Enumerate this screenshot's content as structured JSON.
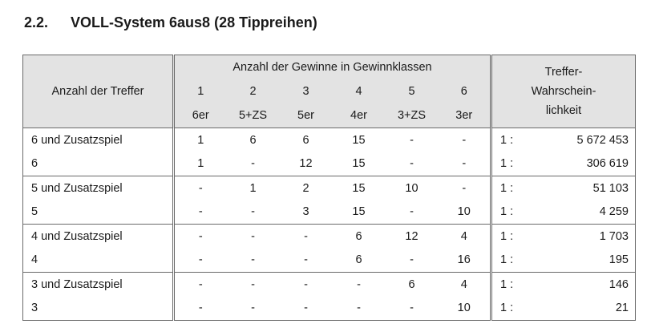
{
  "heading": {
    "number": "2.2.",
    "title": "VOLL-System 6aus8 (28 Tippreihen)"
  },
  "table": {
    "col_header_hits": "Anzahl der Treffer",
    "col_header_wins": "Anzahl der Gewinne in Gewinnklassen",
    "col_header_prob_lines": [
      "Treffer-",
      "Wahrschein-",
      "lichkeit"
    ],
    "classes": [
      "1",
      "2",
      "3",
      "4",
      "5",
      "6"
    ],
    "class_labels": [
      "6er",
      "5+ZS",
      "5er",
      "4er",
      "3+ZS",
      "3er"
    ],
    "rows": [
      {
        "label": "6 und Zusatzspiel",
        "wins": [
          "1",
          "6",
          "6",
          "15",
          "-",
          "-"
        ],
        "ratio": "1 :",
        "prob": "5 672 453"
      },
      {
        "label": "6",
        "wins": [
          "1",
          "-",
          "12",
          "15",
          "-",
          "-"
        ],
        "ratio": "1 :",
        "prob": "306 619"
      },
      {
        "label": "5 und Zusatzspiel",
        "wins": [
          "-",
          "1",
          "2",
          "15",
          "10",
          "-"
        ],
        "ratio": "1 :",
        "prob": "51 103"
      },
      {
        "label": "5",
        "wins": [
          "-",
          "-",
          "3",
          "15",
          "-",
          "10"
        ],
        "ratio": "1 :",
        "prob": "4 259"
      },
      {
        "label": "4 und Zusatzspiel",
        "wins": [
          "-",
          "-",
          "-",
          "6",
          "12",
          "4"
        ],
        "ratio": "1 :",
        "prob": "1 703"
      },
      {
        "label": "4",
        "wins": [
          "-",
          "-",
          "-",
          "6",
          "-",
          "16"
        ],
        "ratio": "1 :",
        "prob": "195"
      },
      {
        "label": "3 und Zusatzspiel",
        "wins": [
          "-",
          "-",
          "-",
          "-",
          "6",
          "4"
        ],
        "ratio": "1 :",
        "prob": "146"
      },
      {
        "label": "3",
        "wins": [
          "-",
          "-",
          "-",
          "-",
          "-",
          "10"
        ],
        "ratio": "1 :",
        "prob": "21"
      }
    ]
  }
}
